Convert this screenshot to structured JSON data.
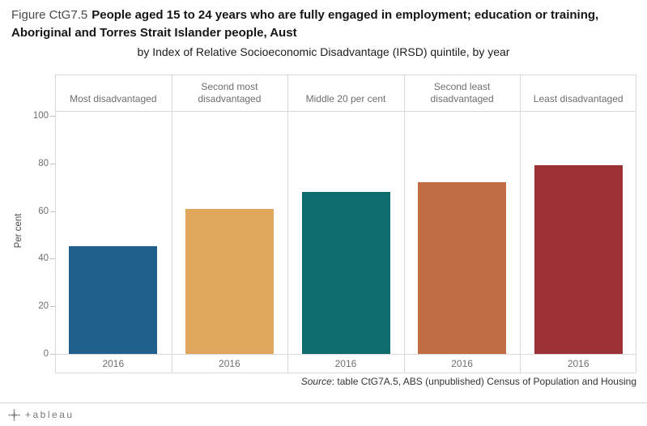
{
  "title": {
    "prefix": "Figure CtG7.5",
    "bold_line1": "People aged 15 to 24 years who are fully engaged in employment; education or training,",
    "bold_line2": "Aboriginal and Torres Strait Islander people, Aust",
    "subtitle": "by Index of Relative Socioeconomic Disadvantage (IRSD) quintile, by year"
  },
  "chart_data": {
    "type": "bar",
    "title": "Figure CtG7.5 People aged 15 to 24 years who are fully engaged in employment; education or training, Aboriginal and Torres Strait Islander people, Aust",
    "subtitle": "by Index of Relative Socioeconomic Disadvantage (IRSD) quintile, by year",
    "categories": [
      "Most disadvantaged",
      "Second most disadvantaged",
      "Middle 20 per cent",
      "Second least disadvantaged",
      "Least disadvantaged"
    ],
    "x": [
      "2016",
      "2016",
      "2016",
      "2016",
      "2016"
    ],
    "values": [
      45.3,
      61,
      68,
      72,
      79.3
    ],
    "colors": [
      "#1f618c",
      "#e1a85d",
      "#0e6b6e",
      "#c16c42",
      "#9d3236"
    ],
    "ylabel": "Per cent",
    "yticks": [
      0,
      20,
      40,
      60,
      80,
      100
    ],
    "ylim": [
      0,
      102
    ],
    "grid": false,
    "legend": "none"
  },
  "source": {
    "label": "Source",
    "rest": ": table CtG7A.5, ABS (unpublished) Census of Population and Housing"
  },
  "footer": {
    "wordmark": "+ableau"
  }
}
